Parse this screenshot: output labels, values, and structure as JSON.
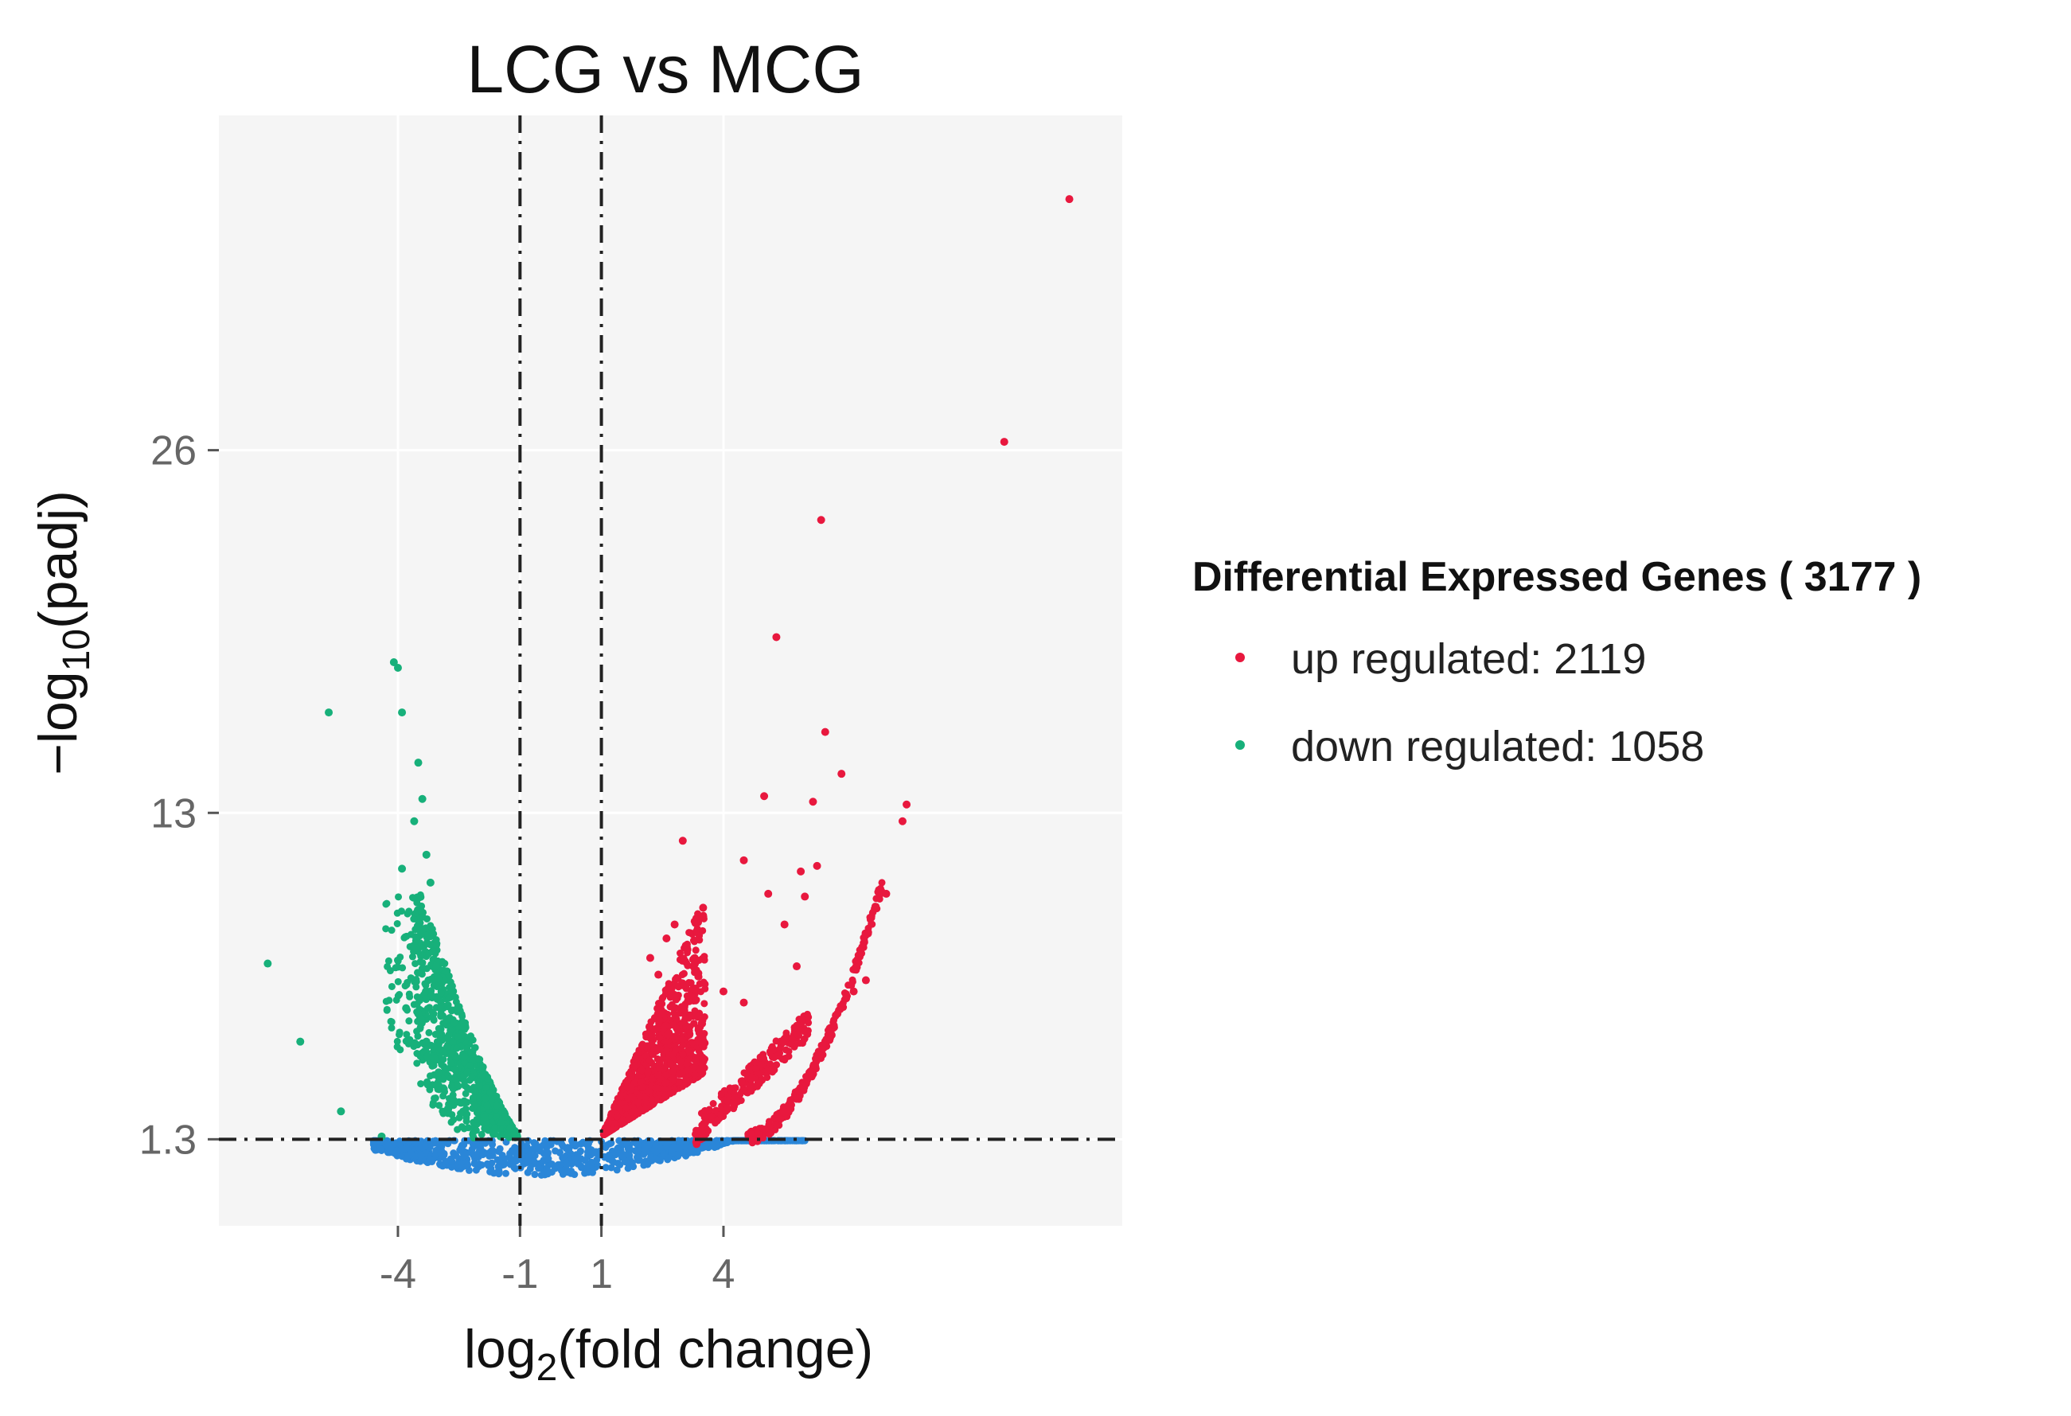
{
  "chart_data": {
    "type": "scatter",
    "title": "LCG vs MCG",
    "xlabel_base": "log",
    "xlabel_sub": "2",
    "xlabel_rest": "(fold change)",
    "ylabel_prefix": "−log",
    "ylabel_sub": "10",
    "ylabel_rest": "(padj)",
    "x_ticks": [
      {
        "value": -4,
        "label": "-4"
      },
      {
        "value": -1,
        "label": "-1"
      },
      {
        "value": 1,
        "label": "1"
      },
      {
        "value": 4,
        "label": "4"
      }
    ],
    "y_ticks": [
      {
        "value": 1.3,
        "label": "1.3"
      },
      {
        "value": 13,
        "label": "13"
      },
      {
        "value": 26,
        "label": "26"
      }
    ],
    "xlim": [
      -8.4,
      13.8
    ],
    "ylim": [
      -1.8,
      38.0
    ],
    "vlines": [
      -1,
      1
    ],
    "hline": 1.3,
    "grid": true,
    "legend": {
      "title": "Differential Expressed Genes ( 3177 )",
      "items": [
        {
          "label": "up regulated: 2119",
          "color": "#e8183e"
        },
        {
          "label": "down regulated: 1058",
          "color": "#17b07a"
        }
      ]
    },
    "colors": {
      "up": "#e8183e",
      "down": "#17b07a",
      "nonsig": "#2a86d8"
    },
    "series": [
      {
        "name": "up regulated",
        "count": 2119,
        "points": [
          [
            12.5,
            35.0
          ],
          [
            10.9,
            26.3
          ],
          [
            6.4,
            23.5
          ],
          [
            5.3,
            19.3
          ],
          [
            6.5,
            15.9
          ],
          [
            6.9,
            14.4
          ],
          [
            5.0,
            13.6
          ],
          [
            6.2,
            13.4
          ],
          [
            8.5,
            13.3
          ],
          [
            8.4,
            12.7
          ],
          [
            3.0,
            12.0
          ],
          [
            4.5,
            11.3
          ],
          [
            5.9,
            10.9
          ],
          [
            6.3,
            11.1
          ],
          [
            5.1,
            10.1
          ],
          [
            6.0,
            10.0
          ],
          [
            8.0,
            10.1
          ],
          [
            3.5,
            9.6
          ],
          [
            5.5,
            9.0
          ],
          [
            5.8,
            7.5
          ],
          [
            7.5,
            7.0
          ],
          [
            2.8,
            9.0
          ],
          [
            2.6,
            8.5
          ],
          [
            3.1,
            8.2
          ],
          [
            3.3,
            7.6
          ],
          [
            2.2,
            7.8
          ],
          [
            2.4,
            7.2
          ],
          [
            4.0,
            6.6
          ],
          [
            4.5,
            6.2
          ],
          [
            6.8,
            5.8
          ],
          [
            7.2,
            6.6
          ]
        ]
      },
      {
        "name": "down regulated",
        "count": 1058,
        "points": [
          [
            -4.0,
            18.2
          ],
          [
            -4.1,
            18.4
          ],
          [
            -5.7,
            16.6
          ],
          [
            -3.9,
            16.6
          ],
          [
            -3.5,
            14.8
          ],
          [
            -3.4,
            13.5
          ],
          [
            -3.6,
            12.7
          ],
          [
            -3.9,
            11.0
          ],
          [
            -3.3,
            11.5
          ],
          [
            -3.2,
            10.5
          ],
          [
            -7.2,
            7.6
          ],
          [
            -6.4,
            4.8
          ],
          [
            -3.8,
            6.0
          ],
          [
            -3.5,
            5.8
          ],
          [
            -5.4,
            2.3
          ],
          [
            -4.4,
            1.4
          ],
          [
            -3.3,
            4.8
          ],
          [
            -3.1,
            4.2
          ],
          [
            -2.8,
            5.6
          ],
          [
            -3.0,
            3.7
          ]
        ]
      }
    ]
  }
}
